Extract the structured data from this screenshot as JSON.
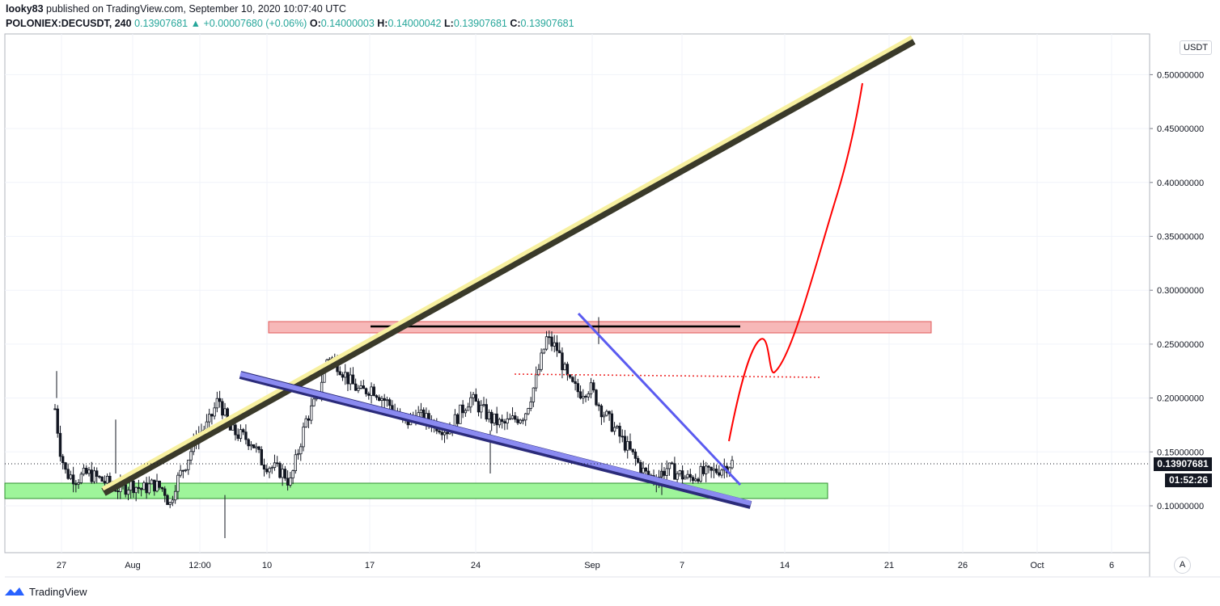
{
  "header": {
    "author": "looky83",
    "published_text": "published on TradingView.com, September 10, 2020 10:07:40 UTC",
    "symbol": "POLONIEX:DECUSDT, 240",
    "last": "0.13907681",
    "change": "+0.00007680 (+0.06%)",
    "o_label": "O:",
    "o": "0.14000003",
    "h_label": "H:",
    "h": "0.14000042",
    "l_label": "L:",
    "l": "0.13907681",
    "c_label": "C:",
    "c": "0.13907681"
  },
  "currency_badge": "USDT",
  "price_tag": "0.13907681",
  "countdown_tag": "01:52:26",
  "auto_scale_button": "A",
  "footer": {
    "brand": "TradingView"
  },
  "colors": {
    "up": "#26a69a",
    "candle": "#131722",
    "support_zone": "#9ef59a",
    "resistance_zone": "#f7b8b8",
    "trend_yellow": "#f7f0a0",
    "channel_blue": "#8a8af0",
    "projection_red": "#ff0000"
  },
  "chart_data": {
    "type": "candlestick",
    "symbol": "DECUSDT",
    "interval": "240",
    "x_ticks": [
      "27",
      "Aug",
      "12:00",
      "10",
      "17",
      "24",
      "Sep",
      "7",
      "14",
      "21",
      "26",
      "Oct",
      "6"
    ],
    "y_ticks": [
      "0.10000000",
      "0.15000000",
      "0.20000000",
      "0.25000000",
      "0.30000000",
      "0.35000000",
      "0.40000000",
      "0.45000000",
      "0.50000000"
    ],
    "ylim": [
      0.06,
      0.54
    ],
    "grid": true,
    "last_price": 0.13907681,
    "price_path": [
      [
        0,
        0.19
      ],
      [
        1,
        0.15
      ],
      [
        2,
        0.13
      ],
      [
        4,
        0.125
      ],
      [
        6,
        0.13
      ],
      [
        8,
        0.125
      ],
      [
        10,
        0.12
      ],
      [
        12,
        0.115
      ],
      [
        14,
        0.12
      ],
      [
        16,
        0.115
      ],
      [
        18,
        0.12
      ],
      [
        20,
        0.115
      ],
      [
        21,
        0.1
      ],
      [
        22,
        0.12
      ],
      [
        24,
        0.14
      ],
      [
        26,
        0.165
      ],
      [
        28,
        0.175
      ],
      [
        30,
        0.2
      ],
      [
        32,
        0.17
      ],
      [
        34,
        0.165
      ],
      [
        36,
        0.16
      ],
      [
        38,
        0.14
      ],
      [
        40,
        0.135
      ],
      [
        42,
        0.13
      ],
      [
        43,
        0.12
      ],
      [
        44,
        0.14
      ],
      [
        46,
        0.18
      ],
      [
        48,
        0.2
      ],
      [
        49,
        0.22
      ],
      [
        50,
        0.24
      ],
      [
        52,
        0.23
      ],
      [
        54,
        0.215
      ],
      [
        56,
        0.205
      ],
      [
        58,
        0.21
      ],
      [
        60,
        0.2
      ],
      [
        62,
        0.19
      ],
      [
        64,
        0.175
      ],
      [
        66,
        0.185
      ],
      [
        68,
        0.18
      ],
      [
        70,
        0.175
      ],
      [
        72,
        0.17
      ],
      [
        74,
        0.185
      ],
      [
        76,
        0.2
      ],
      [
        78,
        0.19
      ],
      [
        80,
        0.18
      ],
      [
        82,
        0.175
      ],
      [
        84,
        0.18
      ],
      [
        86,
        0.185
      ],
      [
        88,
        0.215
      ],
      [
        90,
        0.255
      ],
      [
        92,
        0.245
      ],
      [
        94,
        0.215
      ],
      [
        96,
        0.205
      ],
      [
        98,
        0.21
      ],
      [
        100,
        0.19
      ],
      [
        102,
        0.175
      ],
      [
        104,
        0.16
      ],
      [
        106,
        0.145
      ],
      [
        108,
        0.13
      ],
      [
        110,
        0.125
      ],
      [
        112,
        0.135
      ],
      [
        114,
        0.13
      ],
      [
        116,
        0.125
      ],
      [
        118,
        0.13
      ],
      [
        120,
        0.13
      ],
      [
        122,
        0.135
      ],
      [
        124,
        0.14
      ]
    ],
    "annotations": {
      "resistance_zone": [
        0.26,
        0.27
      ],
      "support_zone": [
        0.108,
        0.122
      ],
      "resistance_line": 0.267,
      "dotted_level": 0.221
    }
  }
}
